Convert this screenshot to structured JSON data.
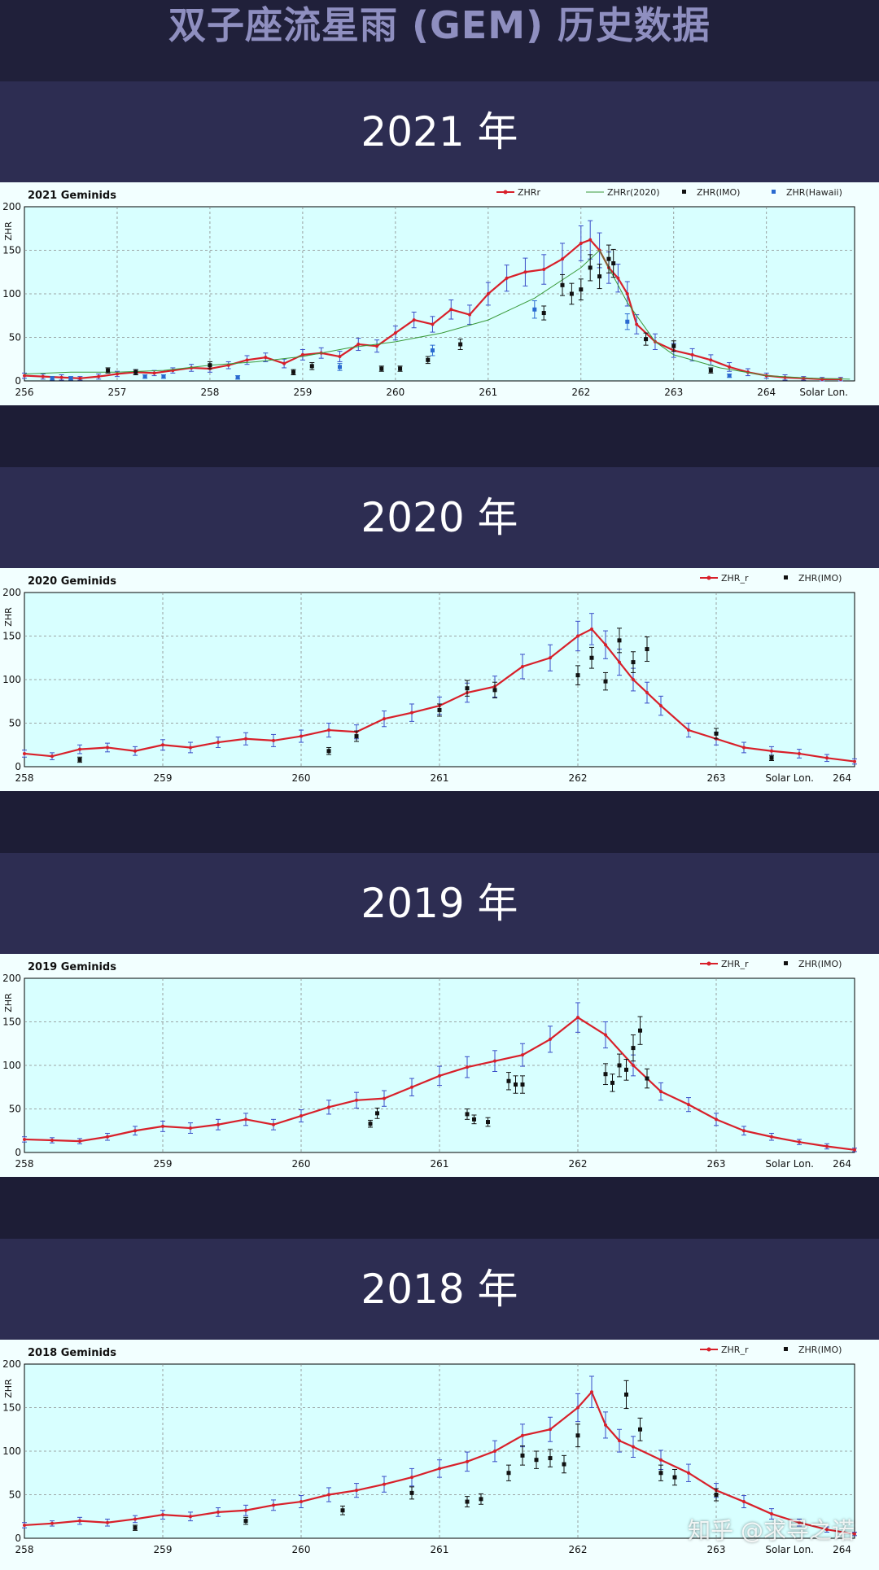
{
  "page": {
    "title": "双子座流星雨 (GEM) 历史数据",
    "watermark": "知乎 @求导之诺"
  },
  "colors": {
    "zhr_r": "#d8202a",
    "zhr_r_err": "#3a4ec8",
    "zhr_2020": "#3a9a3a",
    "zhr_imo": "#111111",
    "zhr_hawaii": "#2a6ad0",
    "plot_bg": "#d8ffff",
    "grid": "#888888"
  },
  "sections": [
    {
      "year_label": "2021 年"
    },
    {
      "year_label": "2020 年"
    },
    {
      "year_label": "2019 年"
    },
    {
      "year_label": "2018 年"
    }
  ],
  "chart_data": [
    {
      "type": "line",
      "title": "2021 Geminids",
      "ylabel": "ZHR",
      "xlabel": "Solar Lon.",
      "xlim": [
        256,
        264.95
      ],
      "ylim": [
        0,
        200
      ],
      "xticks": [
        256,
        257,
        258,
        259,
        260,
        261,
        262,
        263,
        264
      ],
      "yticks": [
        0,
        50,
        100,
        150,
        200
      ],
      "grid": true,
      "legend_position": "top-right",
      "series": [
        {
          "name": "ZHRr",
          "kind": "line-err",
          "color_key": "zhr_r",
          "x": [
            256.0,
            256.2,
            256.4,
            256.6,
            256.8,
            257.0,
            257.2,
            257.4,
            257.6,
            257.8,
            258.0,
            258.2,
            258.4,
            258.6,
            258.8,
            259.0,
            259.2,
            259.4,
            259.6,
            259.8,
            260.0,
            260.2,
            260.4,
            260.6,
            260.8,
            261.0,
            261.2,
            261.4,
            261.6,
            261.8,
            262.0,
            262.1,
            262.2,
            262.3,
            262.4,
            262.5,
            262.6,
            262.8,
            263.0,
            263.2,
            263.4,
            263.6,
            263.8,
            264.0,
            264.2,
            264.4,
            264.6,
            264.8
          ],
          "y": [
            6,
            5,
            4,
            3,
            5,
            8,
            10,
            9,
            12,
            15,
            14,
            18,
            24,
            27,
            20,
            30,
            32,
            28,
            42,
            40,
            55,
            70,
            65,
            82,
            76,
            100,
            118,
            125,
            128,
            140,
            158,
            162,
            150,
            130,
            118,
            100,
            65,
            45,
            35,
            30,
            24,
            16,
            10,
            6,
            4,
            3,
            2,
            2
          ],
          "err": [
            3,
            3,
            3,
            2,
            3,
            3,
            3,
            3,
            3,
            4,
            4,
            4,
            5,
            5,
            5,
            6,
            6,
            6,
            7,
            7,
            8,
            9,
            9,
            11,
            11,
            13,
            15,
            16,
            17,
            18,
            20,
            22,
            20,
            18,
            16,
            14,
            11,
            9,
            8,
            7,
            6,
            5,
            4,
            3,
            3,
            2,
            2,
            2
          ]
        },
        {
          "name": "ZHRr(2020)",
          "kind": "line",
          "color_key": "zhr_2020",
          "x": [
            256.0,
            256.5,
            257.0,
            257.5,
            258.0,
            258.5,
            259.0,
            259.5,
            260.0,
            260.5,
            261.0,
            261.5,
            262.0,
            262.2,
            262.5,
            262.8,
            263.0,
            263.5,
            264.0,
            264.5,
            264.9
          ],
          "y": [
            8,
            10,
            10,
            12,
            18,
            22,
            28,
            38,
            45,
            55,
            70,
            95,
            130,
            150,
            90,
            45,
            30,
            15,
            6,
            3,
            2
          ]
        },
        {
          "name": "ZHR(IMO)",
          "kind": "points-err",
          "color_key": "zhr_imo",
          "x": [
            256.9,
            257.2,
            258.0,
            258.9,
            259.1,
            259.85,
            260.05,
            260.35,
            260.7,
            261.6,
            261.8,
            261.9,
            262.0,
            262.1,
            262.2,
            262.3,
            262.35,
            262.7,
            263.0,
            263.4
          ],
          "y": [
            12,
            10,
            18,
            10,
            17,
            14,
            14,
            24,
            42,
            78,
            110,
            100,
            105,
            130,
            120,
            140,
            135,
            48,
            40,
            12
          ],
          "err": [
            3,
            3,
            4,
            3,
            4,
            3,
            3,
            4,
            6,
            8,
            12,
            12,
            12,
            15,
            14,
            16,
            16,
            7,
            6,
            3
          ]
        },
        {
          "name": "ZHR(Hawaii)",
          "kind": "points-err",
          "color_key": "zhr_hawaii",
          "x": [
            256.3,
            256.5,
            257.3,
            257.5,
            258.3,
            259.4,
            260.4,
            261.5,
            262.5,
            263.6
          ],
          "y": [
            3,
            3,
            5,
            5,
            4,
            16,
            35,
            82,
            68,
            6
          ],
          "err": [
            2,
            2,
            2,
            2,
            2,
            4,
            6,
            10,
            9,
            2
          ]
        }
      ]
    },
    {
      "type": "line",
      "title": "2020 Geminids",
      "ylabel": "ZHR",
      "xlabel": "Solar Lon.",
      "xlim": [
        258,
        264
      ],
      "ylim": [
        0,
        200
      ],
      "xticks": [
        258,
        259,
        260,
        261,
        262,
        263,
        264
      ],
      "yticks": [
        0,
        50,
        100,
        150,
        200
      ],
      "grid": true,
      "legend_position": "top-right",
      "series": [
        {
          "name": "ZHR_r",
          "kind": "line-err",
          "color_key": "zhr_r",
          "x": [
            258.0,
            258.2,
            258.4,
            258.6,
            258.8,
            259.0,
            259.2,
            259.4,
            259.6,
            259.8,
            260.0,
            260.2,
            260.4,
            260.6,
            260.8,
            261.0,
            261.2,
            261.4,
            261.6,
            261.8,
            262.0,
            262.1,
            262.2,
            262.3,
            262.4,
            262.5,
            262.6,
            262.8,
            263.0,
            263.2,
            263.4,
            263.6,
            263.8,
            264.0
          ],
          "y": [
            15,
            12,
            20,
            22,
            18,
            25,
            22,
            28,
            32,
            30,
            35,
            42,
            40,
            55,
            62,
            70,
            85,
            92,
            115,
            125,
            150,
            158,
            140,
            120,
            100,
            85,
            70,
            42,
            32,
            22,
            18,
            15,
            10,
            6
          ],
          "err": [
            4,
            4,
            5,
            5,
            5,
            6,
            6,
            6,
            7,
            7,
            7,
            8,
            8,
            9,
            10,
            10,
            11,
            12,
            14,
            15,
            17,
            18,
            16,
            15,
            13,
            12,
            11,
            8,
            7,
            6,
            5,
            5,
            4,
            3
          ]
        },
        {
          "name": "ZHR(IMO)",
          "kind": "points-err",
          "color_key": "zhr_imo",
          "x": [
            258.4,
            260.2,
            260.4,
            261.0,
            261.2,
            261.4,
            262.0,
            262.1,
            262.2,
            262.3,
            262.4,
            262.5,
            263.0,
            263.4
          ],
          "y": [
            8,
            18,
            35,
            65,
            90,
            88,
            105,
            125,
            98,
            145,
            120,
            135,
            38,
            10
          ],
          "err": [
            3,
            4,
            6,
            7,
            9,
            9,
            11,
            12,
            10,
            14,
            12,
            14,
            6,
            3
          ]
        }
      ]
    },
    {
      "type": "line",
      "title": "2019 Geminids",
      "ylabel": "ZHR",
      "xlabel": "Solar Lon.",
      "xlim": [
        258,
        264
      ],
      "ylim": [
        0,
        200
      ],
      "xticks": [
        258,
        259,
        260,
        261,
        262,
        263,
        264
      ],
      "yticks": [
        0,
        50,
        100,
        150,
        200
      ],
      "grid": true,
      "legend_position": "top-right",
      "series": [
        {
          "name": "ZHR_r",
          "kind": "line-err",
          "color_key": "zhr_r",
          "x": [
            258.0,
            258.2,
            258.4,
            258.6,
            258.8,
            259.0,
            259.2,
            259.4,
            259.6,
            259.8,
            260.0,
            260.2,
            260.4,
            260.6,
            260.8,
            261.0,
            261.2,
            261.4,
            261.6,
            261.8,
            262.0,
            262.2,
            262.4,
            262.6,
            262.8,
            263.0,
            263.2,
            263.4,
            263.6,
            263.8,
            264.0
          ],
          "y": [
            15,
            14,
            13,
            18,
            25,
            30,
            28,
            32,
            38,
            32,
            42,
            52,
            60,
            62,
            75,
            88,
            98,
            105,
            112,
            130,
            155,
            135,
            100,
            70,
            55,
            38,
            25,
            18,
            12,
            7,
            3
          ],
          "err": [
            3,
            3,
            3,
            4,
            5,
            6,
            6,
            6,
            7,
            6,
            7,
            8,
            9,
            9,
            10,
            11,
            12,
            12,
            13,
            15,
            17,
            15,
            12,
            10,
            8,
            7,
            5,
            4,
            3,
            3,
            2
          ]
        },
        {
          "name": "ZHR(IMO)",
          "kind": "points-err",
          "color_key": "zhr_imo",
          "x": [
            260.5,
            260.55,
            261.2,
            261.25,
            261.35,
            261.5,
            261.55,
            261.6,
            262.2,
            262.25,
            262.3,
            262.35,
            262.4,
            262.45,
            262.5
          ],
          "y": [
            33,
            45,
            44,
            38,
            35,
            82,
            78,
            78,
            90,
            80,
            100,
            95,
            120,
            140,
            85
          ],
          "err": [
            4,
            6,
            6,
            5,
            5,
            10,
            10,
            10,
            12,
            10,
            13,
            12,
            15,
            16,
            11
          ]
        }
      ]
    },
    {
      "type": "line",
      "title": "2018 Geminids",
      "ylabel": "ZHR",
      "xlabel": "Solar Lon.",
      "xlim": [
        258,
        264
      ],
      "ylim": [
        0,
        200
      ],
      "xticks": [
        258,
        259,
        260,
        261,
        262,
        263,
        264
      ],
      "yticks": [
        0,
        50,
        100,
        150,
        200
      ],
      "grid": true,
      "legend_position": "top-right",
      "series": [
        {
          "name": "ZHR_r",
          "kind": "line-err",
          "color_key": "zhr_r",
          "x": [
            258.0,
            258.2,
            258.4,
            258.6,
            258.8,
            259.0,
            259.2,
            259.4,
            259.6,
            259.8,
            260.0,
            260.2,
            260.4,
            260.6,
            260.8,
            261.0,
            261.2,
            261.4,
            261.6,
            261.8,
            262.0,
            262.1,
            262.2,
            262.3,
            262.4,
            262.6,
            262.8,
            263.0,
            263.2,
            263.4,
            263.6,
            263.8,
            264.0
          ],
          "y": [
            15,
            17,
            20,
            18,
            22,
            27,
            25,
            30,
            32,
            38,
            42,
            50,
            55,
            62,
            70,
            80,
            88,
            100,
            118,
            125,
            150,
            168,
            130,
            112,
            105,
            90,
            75,
            55,
            42,
            28,
            18,
            10,
            5
          ],
          "err": [
            3,
            3,
            4,
            4,
            4,
            5,
            5,
            5,
            6,
            6,
            7,
            8,
            8,
            9,
            10,
            10,
            11,
            12,
            13,
            14,
            16,
            18,
            15,
            13,
            12,
            11,
            10,
            8,
            7,
            6,
            4,
            3,
            2
          ]
        },
        {
          "name": "ZHR(IMO)",
          "kind": "points-err",
          "color_key": "zhr_imo",
          "x": [
            258.8,
            259.6,
            260.3,
            260.8,
            261.2,
            261.3,
            261.5,
            261.6,
            261.7,
            261.8,
            261.9,
            262.0,
            262.35,
            262.45,
            262.6,
            262.7,
            263.0
          ],
          "y": [
            12,
            20,
            32,
            52,
            42,
            45,
            75,
            95,
            90,
            92,
            85,
            118,
            165,
            125,
            75,
            70,
            50
          ],
          "err": [
            3,
            4,
            5,
            7,
            6,
            6,
            9,
            11,
            10,
            10,
            10,
            13,
            16,
            13,
            9,
            9,
            7
          ]
        }
      ]
    }
  ]
}
